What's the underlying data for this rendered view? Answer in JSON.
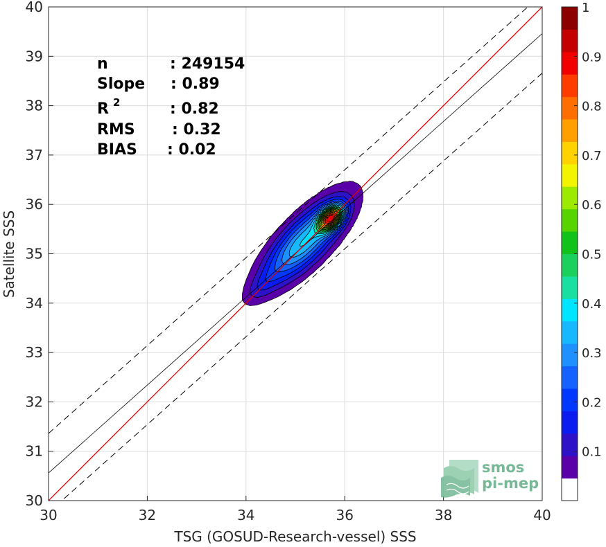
{
  "chart_data": {
    "type": "heatmap",
    "subtype": "density-contour-scatter",
    "xlabel": "TSG (GOSUD-Research-vessel) SSS",
    "ylabel": "Satellite SSS",
    "xlim": [
      30,
      40
    ],
    "ylim": [
      30,
      40
    ],
    "xticks": [
      "30",
      "32",
      "34",
      "36",
      "38",
      "40"
    ],
    "yticks": [
      "30",
      "31",
      "32",
      "33",
      "34",
      "35",
      "36",
      "37",
      "38",
      "39",
      "40"
    ],
    "grid": true,
    "stats": [
      {
        "label": "n",
        "value": ": 249154"
      },
      {
        "label": "Slope",
        "value": ": 0.89"
      },
      {
        "label": "R",
        "sup": "2",
        "value": ": 0.82"
      },
      {
        "label": "RMS",
        "value": ": 0.32"
      },
      {
        "label": "BIAS",
        "value": ": 0.02"
      }
    ],
    "lines": {
      "one_to_one": {
        "color": "#e00000",
        "x": [
          30,
          40
        ],
        "y": [
          30,
          40
        ]
      },
      "regression": {
        "color": "#000000",
        "x": [
          30,
          40
        ],
        "y": [
          30.56,
          39.46
        ]
      },
      "upper_bound": {
        "color": "#000000",
        "style": "dashed",
        "x": [
          30,
          40
        ],
        "y": [
          31.36,
          40.26
        ]
      },
      "lower_bound": {
        "color": "#000000",
        "style": "dashed",
        "x": [
          30,
          40
        ],
        "y": [
          29.76,
          38.66
        ]
      }
    },
    "density_peak": {
      "x": 35.72,
      "y": 35.72
    },
    "contour_levels": [
      0.05,
      0.1,
      0.15,
      0.2,
      0.25,
      0.3,
      0.35,
      0.4,
      0.45,
      0.5,
      0.55,
      0.6,
      0.65,
      0.7,
      0.75,
      0.8,
      0.85,
      0.9,
      0.95
    ],
    "colorbar": {
      "min": 0,
      "max": 1,
      "ticks": [
        "0.1",
        "0.2",
        "0.3",
        "0.4",
        "0.5",
        "0.6",
        "0.7",
        "0.8",
        "0.9",
        "1"
      ],
      "colors": [
        "#ffffff",
        "#5a00a8",
        "#2d12c8",
        "#0a1cf0",
        "#0038ff",
        "#1462ff",
        "#1e90ff",
        "#18b8ff",
        "#00e5ff",
        "#19e0a0",
        "#1bd05c",
        "#10c21a",
        "#55d400",
        "#9cea00",
        "#f3f500",
        "#ffd200",
        "#ffa000",
        "#ff6e00",
        "#ff3c00",
        "#f20000",
        "#c40000",
        "#8c0000"
      ]
    }
  },
  "logo": {
    "line1": "smos",
    "line2": "pi-mep",
    "color": "#78b896"
  }
}
